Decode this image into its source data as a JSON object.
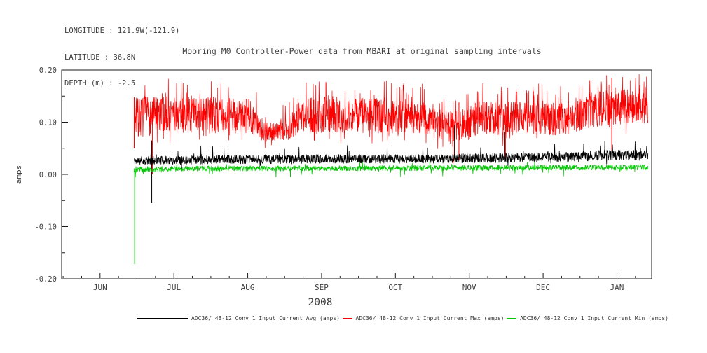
{
  "header": {
    "lines": [
      "LONGITUDE : 121.9W(-121.9)",
      "LATITUDE : 36.8N",
      "DEPTH (m) : -2.5"
    ]
  },
  "chart_data": {
    "type": "line",
    "title": "Mooring M0 Controller-Power data from MBARI at original sampling intervals",
    "ylabel": "amps",
    "ylim": [
      -0.2,
      0.2
    ],
    "ytick_values": [
      0.2,
      0.1,
      0.0,
      -0.1,
      -0.2
    ],
    "ytick_labels": [
      "0.20",
      "0.10",
      "0.00",
      "-0.10",
      "-0.20"
    ],
    "y_minor_values": [
      0.15,
      0.05,
      -0.05,
      -0.15
    ],
    "x_months": [
      "JUN",
      "JUL",
      "AUG",
      "SEP",
      "OCT",
      "NOV",
      "DEC",
      "JAN"
    ],
    "x_month_values": [
      0,
      1,
      2,
      3,
      4,
      5,
      6,
      7
    ],
    "xlim": [
      -0.52,
      7.47
    ],
    "year_label": "2008",
    "grid": false,
    "legend_position": "bottom",
    "axis_color": "#1a1a1a",
    "text_color": "#404040",
    "series": [
      {
        "name": "ADC36/ 48-12 Conv 1 Input Current Avg (amps)",
        "color": "#000000",
        "seed": 11,
        "points": 2000,
        "x_start": 0.46,
        "x_end": 7.42,
        "width": 0.8,
        "envelope": [
          [
            0.46,
            0.018,
            0.034
          ],
          [
            1.5,
            0.02,
            0.037
          ],
          [
            3.0,
            0.021,
            0.038
          ],
          [
            4.6,
            0.021,
            0.038
          ],
          [
            5.0,
            0.022,
            0.04
          ],
          [
            6.3,
            0.024,
            0.042
          ],
          [
            6.9,
            0.027,
            0.047
          ],
          [
            7.42,
            0.026,
            0.046
          ]
        ],
        "spike_up": {
          "prob": 0.012,
          "amp": 0.022
        },
        "spike_down": {
          "prob": 0.006,
          "amp": 0.012
        },
        "events": [
          [
            0.7,
            -0.055,
            0.065
          ],
          [
            4.8,
            0.03,
            0.095
          ],
          [
            5.48,
            0.03,
            0.082
          ]
        ]
      },
      {
        "name": "ADC36/ 48-12 Conv 1 Input Current Max (amps)",
        "color": "#ff0000",
        "seed": 7,
        "points": 2200,
        "x_start": 0.46,
        "x_end": 7.42,
        "width": 0.7,
        "envelope": [
          [
            0.46,
            0.07,
            0.148
          ],
          [
            1.0,
            0.08,
            0.15
          ],
          [
            2.05,
            0.078,
            0.145
          ],
          [
            2.18,
            0.065,
            0.102
          ],
          [
            2.55,
            0.065,
            0.1
          ],
          [
            2.68,
            0.078,
            0.145
          ],
          [
            3.1,
            0.08,
            0.149
          ],
          [
            4.35,
            0.078,
            0.143
          ],
          [
            4.55,
            0.068,
            0.125
          ],
          [
            4.95,
            0.065,
            0.123
          ],
          [
            5.1,
            0.075,
            0.14
          ],
          [
            6.35,
            0.075,
            0.138
          ],
          [
            6.65,
            0.088,
            0.158
          ],
          [
            7.0,
            0.095,
            0.162
          ],
          [
            7.42,
            0.098,
            0.168
          ]
        ],
        "spike_up": {
          "prob": 0.05,
          "amp": 0.035
        },
        "spike_down": {
          "prob": 0.02,
          "amp": 0.02
        },
        "events": [
          [
            0.462,
            0.05,
            0.148
          ],
          [
            0.71,
            0.0,
            0.14
          ],
          [
            4.78,
            0.02,
            0.14
          ],
          [
            4.86,
            0.028,
            0.138
          ],
          [
            5.49,
            0.03,
            0.135
          ],
          [
            6.93,
            0.04,
            0.185
          ]
        ]
      },
      {
        "name": "ADC36/ 48-12 Conv 1 Input Current Min (amps)",
        "color": "#00c800",
        "seed": 23,
        "points": 1600,
        "x_start": 0.46,
        "x_end": 7.42,
        "width": 0.8,
        "envelope": [
          [
            0.46,
            0.003,
            0.015
          ],
          [
            1.0,
            0.006,
            0.016
          ],
          [
            4.0,
            0.007,
            0.017
          ],
          [
            7.42,
            0.008,
            0.019
          ]
        ],
        "spike_up": {
          "prob": 0.008,
          "amp": 0.008
        },
        "spike_down": {
          "prob": 0.01,
          "amp": 0.012
        },
        "events": [
          [
            0.468,
            0.012,
            -0.172
          ]
        ]
      }
    ]
  }
}
